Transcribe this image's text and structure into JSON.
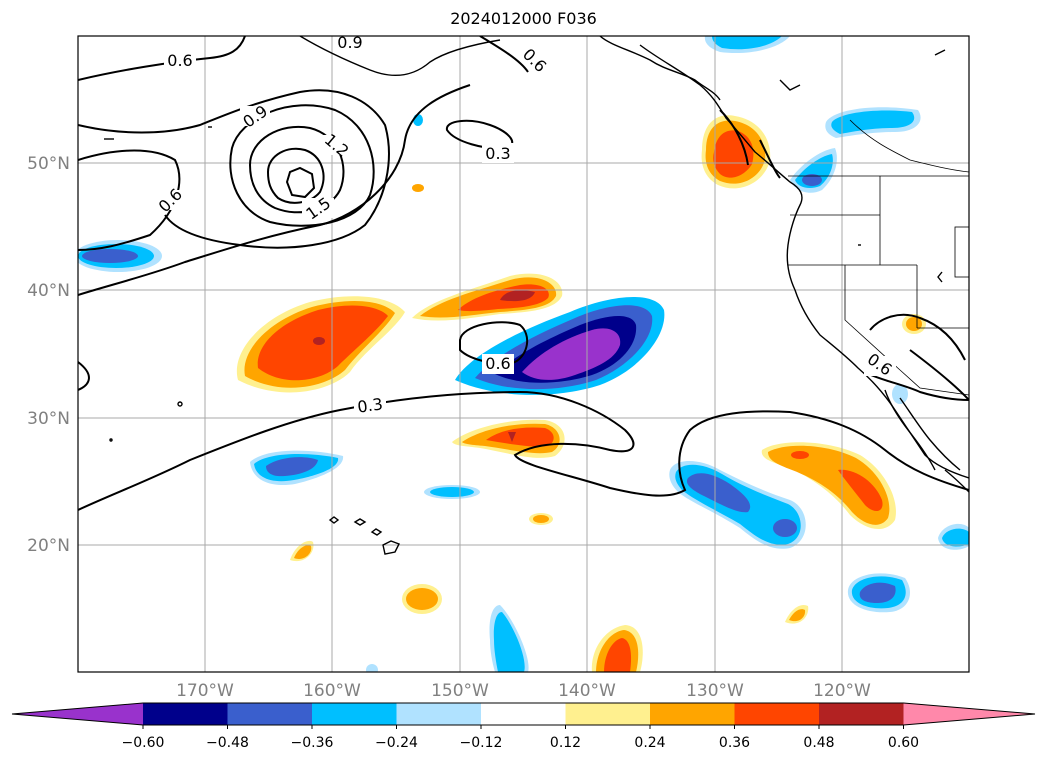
{
  "title": "2024012000 F036",
  "latitude_labels": [
    "50°N",
    "40°N",
    "30°N",
    "20°N"
  ],
  "longitude_labels": [
    "170°W",
    "160°W",
    "150°W",
    "140°W",
    "130°W",
    "120°W"
  ],
  "colorbar": {
    "ticks": [
      "−0.60",
      "−0.48",
      "−0.36",
      "−0.24",
      "−0.12",
      "0.12",
      "0.24",
      "0.36",
      "0.48",
      "0.60"
    ],
    "colors": [
      "#9932cc",
      "#00008b",
      "#3a5fcd",
      "#00bfff",
      "#b0e2ff",
      "#ffffff",
      "#fff08f",
      "#ffa500",
      "#ff4500",
      "#b22222",
      "#ff88aa"
    ]
  },
  "contour_labels": [
    "0.6",
    "0.9",
    "0.6",
    "0.9",
    "1.2",
    "1.5",
    "0.6",
    "0.3",
    "0.6",
    "0.3",
    "0.6"
  ]
}
